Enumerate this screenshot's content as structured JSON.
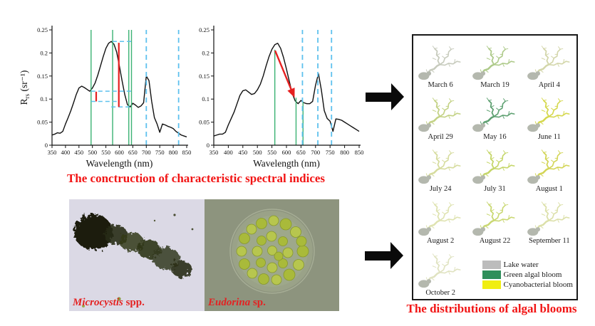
{
  "captions": {
    "spectral_indices": "The conctruction of characteristic spectral indices",
    "distributions": "The distributions of algal blooms",
    "color": "#f21414"
  },
  "micrographs": {
    "left": {
      "genus": "Microcystis",
      "suffix": " spp."
    },
    "right": {
      "genus": "Eudorina",
      "suffix": " sp."
    },
    "label_color": "#e42222"
  },
  "map_panel": {
    "lakes": [
      {
        "date": "March 6",
        "color": "#c7cbbd"
      },
      {
        "date": "March 19",
        "color": "#aeca8a"
      },
      {
        "date": "April 4",
        "color": "#d3d6aa"
      },
      {
        "date": "April 29",
        "color": "#c3d285"
      },
      {
        "date": "May 16",
        "color": "#5fa172"
      },
      {
        "date": "June 11",
        "color": "#d5d84e"
      },
      {
        "date": "July 24",
        "color": "#d6dc9e"
      },
      {
        "date": "July 31",
        "color": "#c5d669"
      },
      {
        "date": "August 1",
        "color": "#d3d556"
      },
      {
        "date": "August 2",
        "color": "#dfe3b1"
      },
      {
        "date": "August 22",
        "color": "#cad873"
      },
      {
        "date": "September 11",
        "color": "#dce0a9"
      },
      {
        "date": "October 2",
        "color": "#e0e3c1"
      }
    ],
    "legend": [
      {
        "label": "Lake water",
        "color": "#bcbcbc"
      },
      {
        "label": "Green algal bloom",
        "color": "#2f8f5b"
      },
      {
        "label": "Cyanobacterial bloom",
        "color": "#f0ee12"
      }
    ]
  },
  "chart_data": [
    {
      "type": "line",
      "title": "",
      "xlabel": "Wavelength (nm)",
      "ylabel": "Rrs (sr⁻¹)",
      "ylabel_parts": {
        "main": "R",
        "sub": "rs",
        "unit": " (sr⁻¹)"
      },
      "xlim": [
        350,
        850
      ],
      "ylim": [
        0,
        0.25
      ],
      "xticks": [
        350,
        400,
        450,
        500,
        550,
        600,
        650,
        700,
        750,
        800,
        850
      ],
      "yticks": [
        {
          "v": 0,
          "label": "0"
        },
        {
          "v": 0.05,
          "label": "0.05"
        },
        {
          "v": 0.1,
          "label": "0.1"
        },
        {
          "v": 0.15,
          "label": "0.15"
        },
        {
          "v": 0.2,
          "label": "0.2"
        },
        {
          "v": 0.25,
          "label": "0.25"
        }
      ],
      "series": [
        {
          "name": "Rrs spectrum",
          "x": [
            350,
            360,
            370,
            380,
            390,
            400,
            410,
            420,
            430,
            440,
            450,
            460,
            470,
            480,
            490,
            500,
            510,
            520,
            530,
            540,
            550,
            560,
            570,
            580,
            590,
            600,
            610,
            620,
            630,
            640,
            650,
            660,
            670,
            680,
            690,
            700,
            710,
            720,
            730,
            740,
            750,
            760,
            770,
            780,
            790,
            800,
            810,
            820,
            830,
            840,
            850
          ],
          "y": [
            0.022,
            0.024,
            0.027,
            0.026,
            0.03,
            0.046,
            0.06,
            0.075,
            0.092,
            0.11,
            0.124,
            0.128,
            0.125,
            0.121,
            0.117,
            0.124,
            0.135,
            0.152,
            0.172,
            0.192,
            0.21,
            0.221,
            0.225,
            0.219,
            0.202,
            0.172,
            0.14,
            0.11,
            0.088,
            0.083,
            0.091,
            0.087,
            0.082,
            0.085,
            0.092,
            0.15,
            0.14,
            0.095,
            0.06,
            0.046,
            0.028,
            0.046,
            0.044,
            0.041,
            0.039,
            0.036,
            0.03,
            0.026,
            0.022,
            0.02,
            0.018
          ]
        }
      ],
      "annotations": {
        "green_vlines": [
          {
            "x": 495,
            "y0": 0,
            "y1": 0.25
          },
          {
            "x": 575,
            "y0": 0,
            "y1": 0.25
          },
          {
            "x": 635,
            "y0": 0,
            "y1": 0.25
          },
          {
            "x": 645,
            "y0": 0,
            "y1": 0.25
          }
        ],
        "blue_dashed_vlines": [
          700,
          820
        ],
        "blue_dashed_hsegments": [
          {
            "y": 0.225,
            "x0": 575,
            "x1": 645
          },
          {
            "y": 0.117,
            "x0": 495,
            "x1": 645
          },
          {
            "y": 0.095,
            "x0": 495,
            "x1": 590
          },
          {
            "y": 0.083,
            "x0": 570,
            "x1": 642
          }
        ],
        "red_vsegments": [
          {
            "x": 598,
            "y0": 0.083,
            "y1": 0.222
          },
          {
            "x": 514,
            "y0": 0.095,
            "y1": 0.116
          }
        ]
      },
      "line_color": "#111111",
      "green_color": "#3bb273",
      "blue_color": "#5ec1ee",
      "red_color": "#e62020"
    },
    {
      "type": "line",
      "title": "",
      "xlabel": "Wavelength (nm)",
      "xlim": [
        350,
        850
      ],
      "ylim": [
        0,
        0.25
      ],
      "xticks": [
        350,
        400,
        450,
        500,
        550,
        600,
        650,
        700,
        750,
        800,
        850
      ],
      "yticks": [
        {
          "v": 0,
          "label": "0"
        },
        {
          "v": 0.05,
          "label": "0.05"
        },
        {
          "v": 0.1,
          "label": "0.1"
        },
        {
          "v": 0.15,
          "label": "0.15"
        },
        {
          "v": 0.2,
          "label": "0.2"
        },
        {
          "v": 0.25,
          "label": "0.25"
        }
      ],
      "series": [
        {
          "name": "Rrs spectrum",
          "x": [
            350,
            360,
            370,
            380,
            390,
            400,
            410,
            420,
            430,
            440,
            450,
            460,
            470,
            480,
            490,
            500,
            510,
            520,
            530,
            540,
            550,
            560,
            570,
            580,
            590,
            600,
            610,
            620,
            630,
            640,
            650,
            660,
            670,
            680,
            690,
            700,
            710,
            720,
            730,
            740,
            750,
            760,
            770,
            780,
            790,
            800,
            810,
            820,
            830,
            840,
            850
          ],
          "y": [
            0.02,
            0.022,
            0.024,
            0.024,
            0.028,
            0.044,
            0.058,
            0.072,
            0.09,
            0.108,
            0.118,
            0.12,
            0.115,
            0.11,
            0.112,
            0.12,
            0.132,
            0.15,
            0.172,
            0.192,
            0.208,
            0.218,
            0.221,
            0.21,
            0.19,
            0.165,
            0.138,
            0.112,
            0.096,
            0.09,
            0.097,
            0.092,
            0.09,
            0.09,
            0.095,
            0.13,
            0.155,
            0.12,
            0.075,
            0.058,
            0.052,
            0.03,
            0.057,
            0.056,
            0.054,
            0.05,
            0.046,
            0.042,
            0.038,
            0.034,
            0.03
          ]
        }
      ],
      "annotations": {
        "green_vlines": [
          {
            "x": 560,
            "y0": 0,
            "y1": 0.207
          },
          {
            "x": 633,
            "y0": 0,
            "y1": 0.103
          },
          {
            "x": 657,
            "y0": 0,
            "y1": 0.094
          }
        ],
        "blue_dashed_vlines": [
          655,
          708,
          755
        ],
        "red_arrow": {
          "x0": 561,
          "y0": 0.205,
          "x1": 628,
          "y1": 0.103
        }
      },
      "line_color": "#111111",
      "green_color": "#3bb273",
      "blue_color": "#5ec1ee",
      "red_color": "#e62020"
    }
  ]
}
